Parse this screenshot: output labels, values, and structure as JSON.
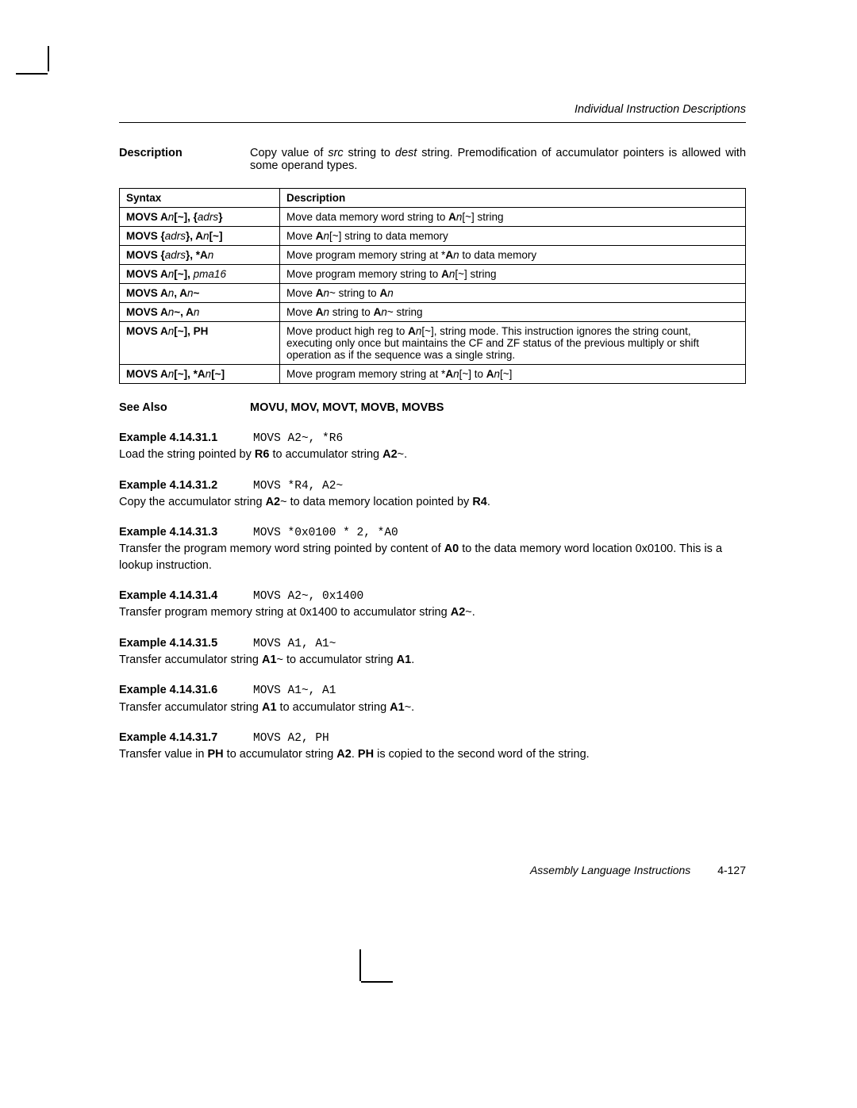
{
  "header": {
    "right": "Individual Instruction Descriptions"
  },
  "description": {
    "label": "Description",
    "text_pre": "Copy value of ",
    "src": "src",
    "text_mid1": " string to ",
    "dest": "dest",
    "text_post": " string. Premodification of accumulator pointers is allowed with some operand types."
  },
  "table": {
    "h1": "Syntax",
    "h2": "Description",
    "rows": [
      {
        "s_pre": "MOVS A",
        "s_n1": "n",
        "s_mid1": "[~], {",
        "s_adrs": "adrs",
        "s_post": "}",
        "d_pre": "Move data memory word string to ",
        "d_bold": "A",
        "d_n": "n",
        "d_post": "[~] string"
      },
      {
        "s_pre": "MOVS {",
        "s_adrs": "adrs",
        "s_mid1": "}, ",
        "s_bold2": "A",
        "s_n2": "n",
        "s_post": "[~]",
        "d_pre": "Move ",
        "d_bold": "A",
        "d_n": "n",
        "d_post": "[~] string to data memory"
      },
      {
        "s_pre": "MOVS {",
        "s_adrs": "adrs",
        "s_mid1": "}, *",
        "s_bold2": "A",
        "s_n2": "n",
        "d_pre": "Move program memory string at *",
        "d_bold": "A",
        "d_n": "n",
        "d_post": " to data memory"
      },
      {
        "s_pre": "MOVS A",
        "s_n1": "n",
        "s_mid1": "[~], ",
        "s_ital": "pma16",
        "d_pre": "Move program memory string to ",
        "d_bold": "A",
        "d_n": "n",
        "d_post": "[~] string"
      },
      {
        "s_pre": "MOVS A",
        "s_n1": "n",
        "s_mid1": ", A",
        "s_n2": "n",
        "s_post": "~",
        "d_pre": "Move ",
        "d_bold": "A",
        "d_n": "n",
        "d_mid": "~ string to ",
        "d_bold2": "A",
        "d_n2": "n"
      },
      {
        "s_pre": "MOVS A",
        "s_n1": "n",
        "s_mid1": "~, A",
        "s_n2": "n",
        "d_pre": "Move ",
        "d_bold": "A",
        "d_n": "n",
        "d_mid": " string to ",
        "d_bold2": "A",
        "d_n2": "n",
        "d_post": "~ string"
      },
      {
        "s_pre": "MOVS A",
        "s_n1": "n",
        "s_mid1": "[~], PH",
        "d_pre": "Move product high reg to ",
        "d_bold": "A",
        "d_n": "n",
        "d_long": "[~], string mode. This instruction ignores the string count, executing only once but maintains the CF and ZF status of the previous multiply or shift operation as if the sequence was a single string."
      },
      {
        "s_pre": "MOVS A",
        "s_n1": "n",
        "s_mid1": "[~], *",
        "s_bold2": "A",
        "s_n2": "n",
        "s_post": "[~]",
        "d_pre": "Move program memory string at *",
        "d_bold": "A",
        "d_n": "n",
        "d_mid": "[~] to ",
        "d_bold2": "A",
        "d_n2": "n",
        "d_post": "[~]"
      }
    ]
  },
  "see_also": {
    "label": "See Also",
    "value": "MOVU, MOV, MOVT, MOVB, MOVBS"
  },
  "examples": [
    {
      "label": "Example 4.14.31.1",
      "code": "MOVS A2~, *R6",
      "t1": "Load the string pointed by ",
      "b1": "R6",
      "t2": " to accumulator string ",
      "b2": "A2",
      "t3": "~."
    },
    {
      "label": "Example 4.14.31.2",
      "code": "MOVS *R4, A2~",
      "t1": "Copy the accumulator string ",
      "b1": "A2",
      "t2": "~ to data memory location pointed by ",
      "b2": "R4",
      "t3": "."
    },
    {
      "label": "Example 4.14.31.3",
      "code": "MOVS *0x0100 * 2, *A0",
      "t1": "Transfer the program memory word string pointed by content of ",
      "b1": "A0",
      "t2": " to the data memory word location 0x0100. This is a lookup instruction."
    },
    {
      "label": "Example 4.14.31.4",
      "code": "MOVS A2~, 0x1400",
      "t1": "Transfer program memory string at 0x1400 to accumulator string ",
      "b1": "A2",
      "t2": "~."
    },
    {
      "label": "Example 4.14.31.5",
      "code": "MOVS A1, A1~",
      "t1": "Transfer accumulator string ",
      "b1": "A1",
      "t2": "~ to accumulator string ",
      "b2": "A1",
      "t3": "."
    },
    {
      "label": "Example 4.14.31.6",
      "code": "MOVS A1~, A1",
      "t1": "Transfer accumulator string ",
      "b1": "A1",
      "t2": " to accumulator string ",
      "b2": "A1",
      "t3": "~."
    },
    {
      "label": "Example 4.14.31.7",
      "code": "MOVS A2, PH",
      "t1": "Transfer value in ",
      "b1": "PH",
      "t2": " to accumulator string ",
      "b2": "A2",
      "t3": ". ",
      "b3": "PH",
      "t4": " is copied to the second word of the string."
    }
  ],
  "footer": {
    "title": "Assembly Language Instructions",
    "page": "4-127"
  }
}
